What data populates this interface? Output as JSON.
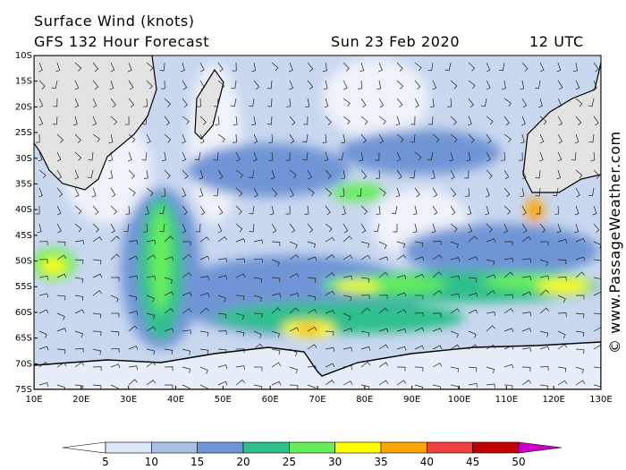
{
  "header": {
    "title": "Surface Wind (knots)",
    "model": "GFS 132 Hour Forecast",
    "date": "Sun 23 Feb 2020",
    "time": "12 UTC"
  },
  "map": {
    "lat_labels": [
      "10S",
      "15S",
      "20S",
      "25S",
      "30S",
      "35S",
      "40S",
      "45S",
      "50S",
      "55S",
      "60S",
      "65S",
      "70S",
      "75S"
    ],
    "lon_labels": [
      "10E",
      "20E",
      "30E",
      "40E",
      "50E",
      "60E",
      "70E",
      "80E",
      "90E",
      "100E",
      "110E",
      "120E",
      "130E"
    ]
  },
  "colorbar": {
    "ticks": [
      5,
      10,
      15,
      20,
      25,
      30,
      35,
      40,
      45,
      50
    ],
    "colors": [
      "#ffffff",
      "#dde6f5",
      "#a9bfe6",
      "#6f95d6",
      "#2fc08c",
      "#66ee5a",
      "#ffff00",
      "#ffa500",
      "#f04040",
      "#c00000",
      "#cc00cc"
    ]
  },
  "credit": "© www.PassageWeather.com"
}
